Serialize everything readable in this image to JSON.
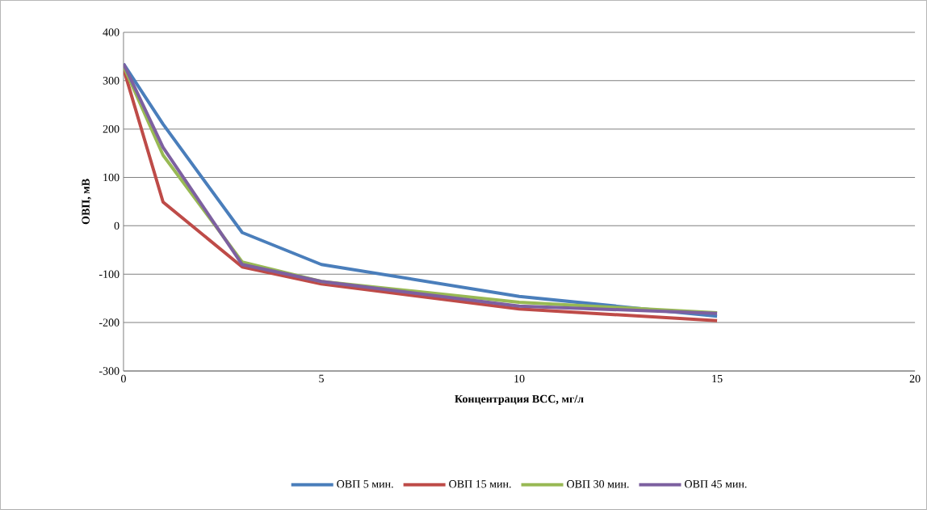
{
  "chart_data": {
    "type": "line",
    "xlabel": "Концентрация ВСС, мг/л",
    "ylabel": "ОВП, мВ",
    "x": [
      0,
      1,
      3,
      5,
      10,
      15
    ],
    "series": [
      {
        "name": "ОВП 5 мин.",
        "color": "#4a7ebb",
        "values": [
          335,
          210,
          -14,
          -80,
          -146,
          -187
        ]
      },
      {
        "name": "ОВП 15 мин.",
        "color": "#be4b48",
        "values": [
          325,
          49,
          -85,
          -120,
          -172,
          -196
        ]
      },
      {
        "name": "ОВП 30 мин.",
        "color": "#98b954",
        "values": [
          330,
          146,
          -75,
          -115,
          -158,
          -180
        ]
      },
      {
        "name": "ОВП 45 мин.",
        "color": "#7d60a0",
        "values": [
          335,
          162,
          -80,
          -115,
          -166,
          -181
        ]
      }
    ],
    "xlim": [
      0,
      20
    ],
    "ylim": [
      -300,
      400
    ],
    "xticks": [
      0,
      5,
      10,
      15,
      20
    ],
    "yticks": [
      -300,
      -200,
      -100,
      0,
      100,
      200,
      300,
      400
    ],
    "grid": "y",
    "legend": "bottom"
  }
}
